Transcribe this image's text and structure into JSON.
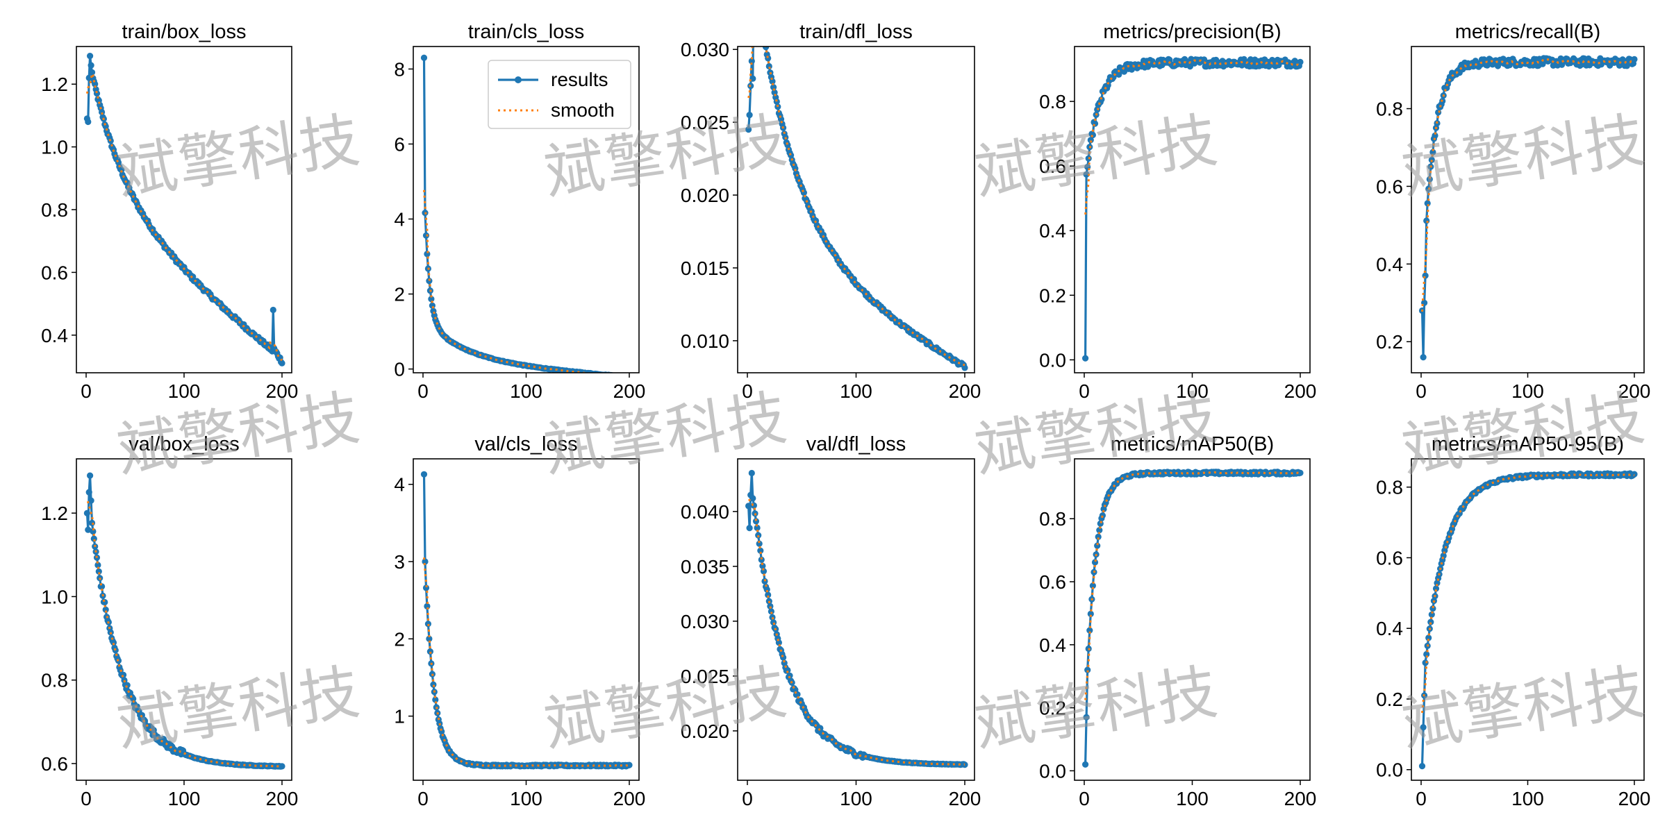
{
  "watermark_text": "斌擎科技",
  "colors": {
    "results": "#1f77b4",
    "smooth": "#ff7f0e",
    "axis": "#000000",
    "background": "#ffffff"
  },
  "legend": {
    "results_label": "results",
    "smooth_label": "smooth",
    "placement": "top-right",
    "panel": "train/cls_loss"
  },
  "chart_data": [
    {
      "type": "line",
      "title": "train/box_loss",
      "xlim": [
        0,
        200
      ],
      "ylim": [
        0.28,
        1.32
      ],
      "xticks": [
        0,
        100,
        200
      ],
      "yticks": [
        0.4,
        0.6,
        0.8,
        1.0,
        1.2
      ],
      "ytick_labels": [
        "0.4",
        "0.6",
        "0.8",
        "1.0",
        "1.2"
      ],
      "shape": "train_box",
      "series": [
        {
          "name": "results"
        },
        {
          "name": "smooth"
        }
      ]
    },
    {
      "type": "line",
      "title": "train/cls_loss",
      "xlim": [
        0,
        200
      ],
      "ylim": [
        -0.1,
        8.6
      ],
      "xticks": [
        0,
        100,
        200
      ],
      "yticks": [
        0,
        2,
        4,
        6,
        8
      ],
      "ytick_labels": [
        "0",
        "2",
        "4",
        "6",
        "8"
      ],
      "shape": "train_cls",
      "series": [
        {
          "name": "results"
        },
        {
          "name": "smooth"
        }
      ]
    },
    {
      "type": "line",
      "title": "train/dfl_loss",
      "xlim": [
        0,
        200
      ],
      "ylim": [
        0.0078,
        0.0302
      ],
      "xticks": [
        0,
        100,
        200
      ],
      "yticks": [
        0.01,
        0.015,
        0.02,
        0.025,
        0.03
      ],
      "ytick_labels": [
        "0.010",
        "0.015",
        "0.020",
        "0.025",
        "0.030"
      ],
      "shape": "train_dfl",
      "series": [
        {
          "name": "results"
        },
        {
          "name": "smooth"
        }
      ]
    },
    {
      "type": "line",
      "title": "metrics/precision(B)",
      "xlim": [
        0,
        200
      ],
      "ylim": [
        -0.04,
        0.97
      ],
      "xticks": [
        0,
        100,
        200
      ],
      "yticks": [
        0.0,
        0.2,
        0.4,
        0.6,
        0.8
      ],
      "ytick_labels": [
        "0.0",
        "0.2",
        "0.4",
        "0.6",
        "0.8"
      ],
      "shape": "precision",
      "series": [
        {
          "name": "results"
        },
        {
          "name": "smooth"
        }
      ]
    },
    {
      "type": "line",
      "title": "metrics/recall(B)",
      "xlim": [
        0,
        200
      ],
      "ylim": [
        0.12,
        0.96
      ],
      "xticks": [
        0,
        100,
        200
      ],
      "yticks": [
        0.2,
        0.4,
        0.6,
        0.8
      ],
      "ytick_labels": [
        "0.2",
        "0.4",
        "0.6",
        "0.8"
      ],
      "shape": "recall",
      "series": [
        {
          "name": "results"
        },
        {
          "name": "smooth"
        }
      ]
    },
    {
      "type": "line",
      "title": "val/box_loss",
      "xlim": [
        0,
        200
      ],
      "ylim": [
        0.56,
        1.33
      ],
      "xticks": [
        0,
        100,
        200
      ],
      "yticks": [
        0.6,
        0.8,
        1.0,
        1.2
      ],
      "ytick_labels": [
        "0.6",
        "0.8",
        "1.0",
        "1.2"
      ],
      "shape": "val_box",
      "series": [
        {
          "name": "results"
        },
        {
          "name": "smooth"
        }
      ]
    },
    {
      "type": "line",
      "title": "val/cls_loss",
      "xlim": [
        0,
        200
      ],
      "ylim": [
        0.17,
        4.33
      ],
      "xticks": [
        0,
        100,
        200
      ],
      "yticks": [
        1,
        2,
        3,
        4
      ],
      "ytick_labels": [
        "1",
        "2",
        "3",
        "4"
      ],
      "shape": "val_cls",
      "series": [
        {
          "name": "results"
        },
        {
          "name": "smooth"
        }
      ]
    },
    {
      "type": "line",
      "title": "val/dfl_loss",
      "xlim": [
        0,
        200
      ],
      "ylim": [
        0.0155,
        0.0448
      ],
      "xticks": [
        0,
        100,
        200
      ],
      "yticks": [
        0.02,
        0.025,
        0.03,
        0.035,
        0.04
      ],
      "ytick_labels": [
        "0.020",
        "0.025",
        "0.030",
        "0.035",
        "0.040"
      ],
      "shape": "val_dfl",
      "series": [
        {
          "name": "results"
        },
        {
          "name": "smooth"
        }
      ]
    },
    {
      "type": "line",
      "title": "metrics/mAP50(B)",
      "xlim": [
        0,
        200
      ],
      "ylim": [
        -0.03,
        0.99
      ],
      "xticks": [
        0,
        100,
        200
      ],
      "yticks": [
        0.0,
        0.2,
        0.4,
        0.6,
        0.8
      ],
      "ytick_labels": [
        "0.0",
        "0.2",
        "0.4",
        "0.6",
        "0.8"
      ],
      "shape": "map50",
      "series": [
        {
          "name": "results"
        },
        {
          "name": "smooth"
        }
      ]
    },
    {
      "type": "line",
      "title": "metrics/mAP50-95(B)",
      "xlim": [
        0,
        200
      ],
      "ylim": [
        -0.03,
        0.88
      ],
      "xticks": [
        0,
        100,
        200
      ],
      "yticks": [
        0.0,
        0.2,
        0.4,
        0.6,
        0.8
      ],
      "ytick_labels": [
        "0.0",
        "0.2",
        "0.4",
        "0.6",
        "0.8"
      ],
      "shape": "map5095",
      "series": [
        {
          "name": "results"
        },
        {
          "name": "smooth"
        }
      ]
    }
  ]
}
